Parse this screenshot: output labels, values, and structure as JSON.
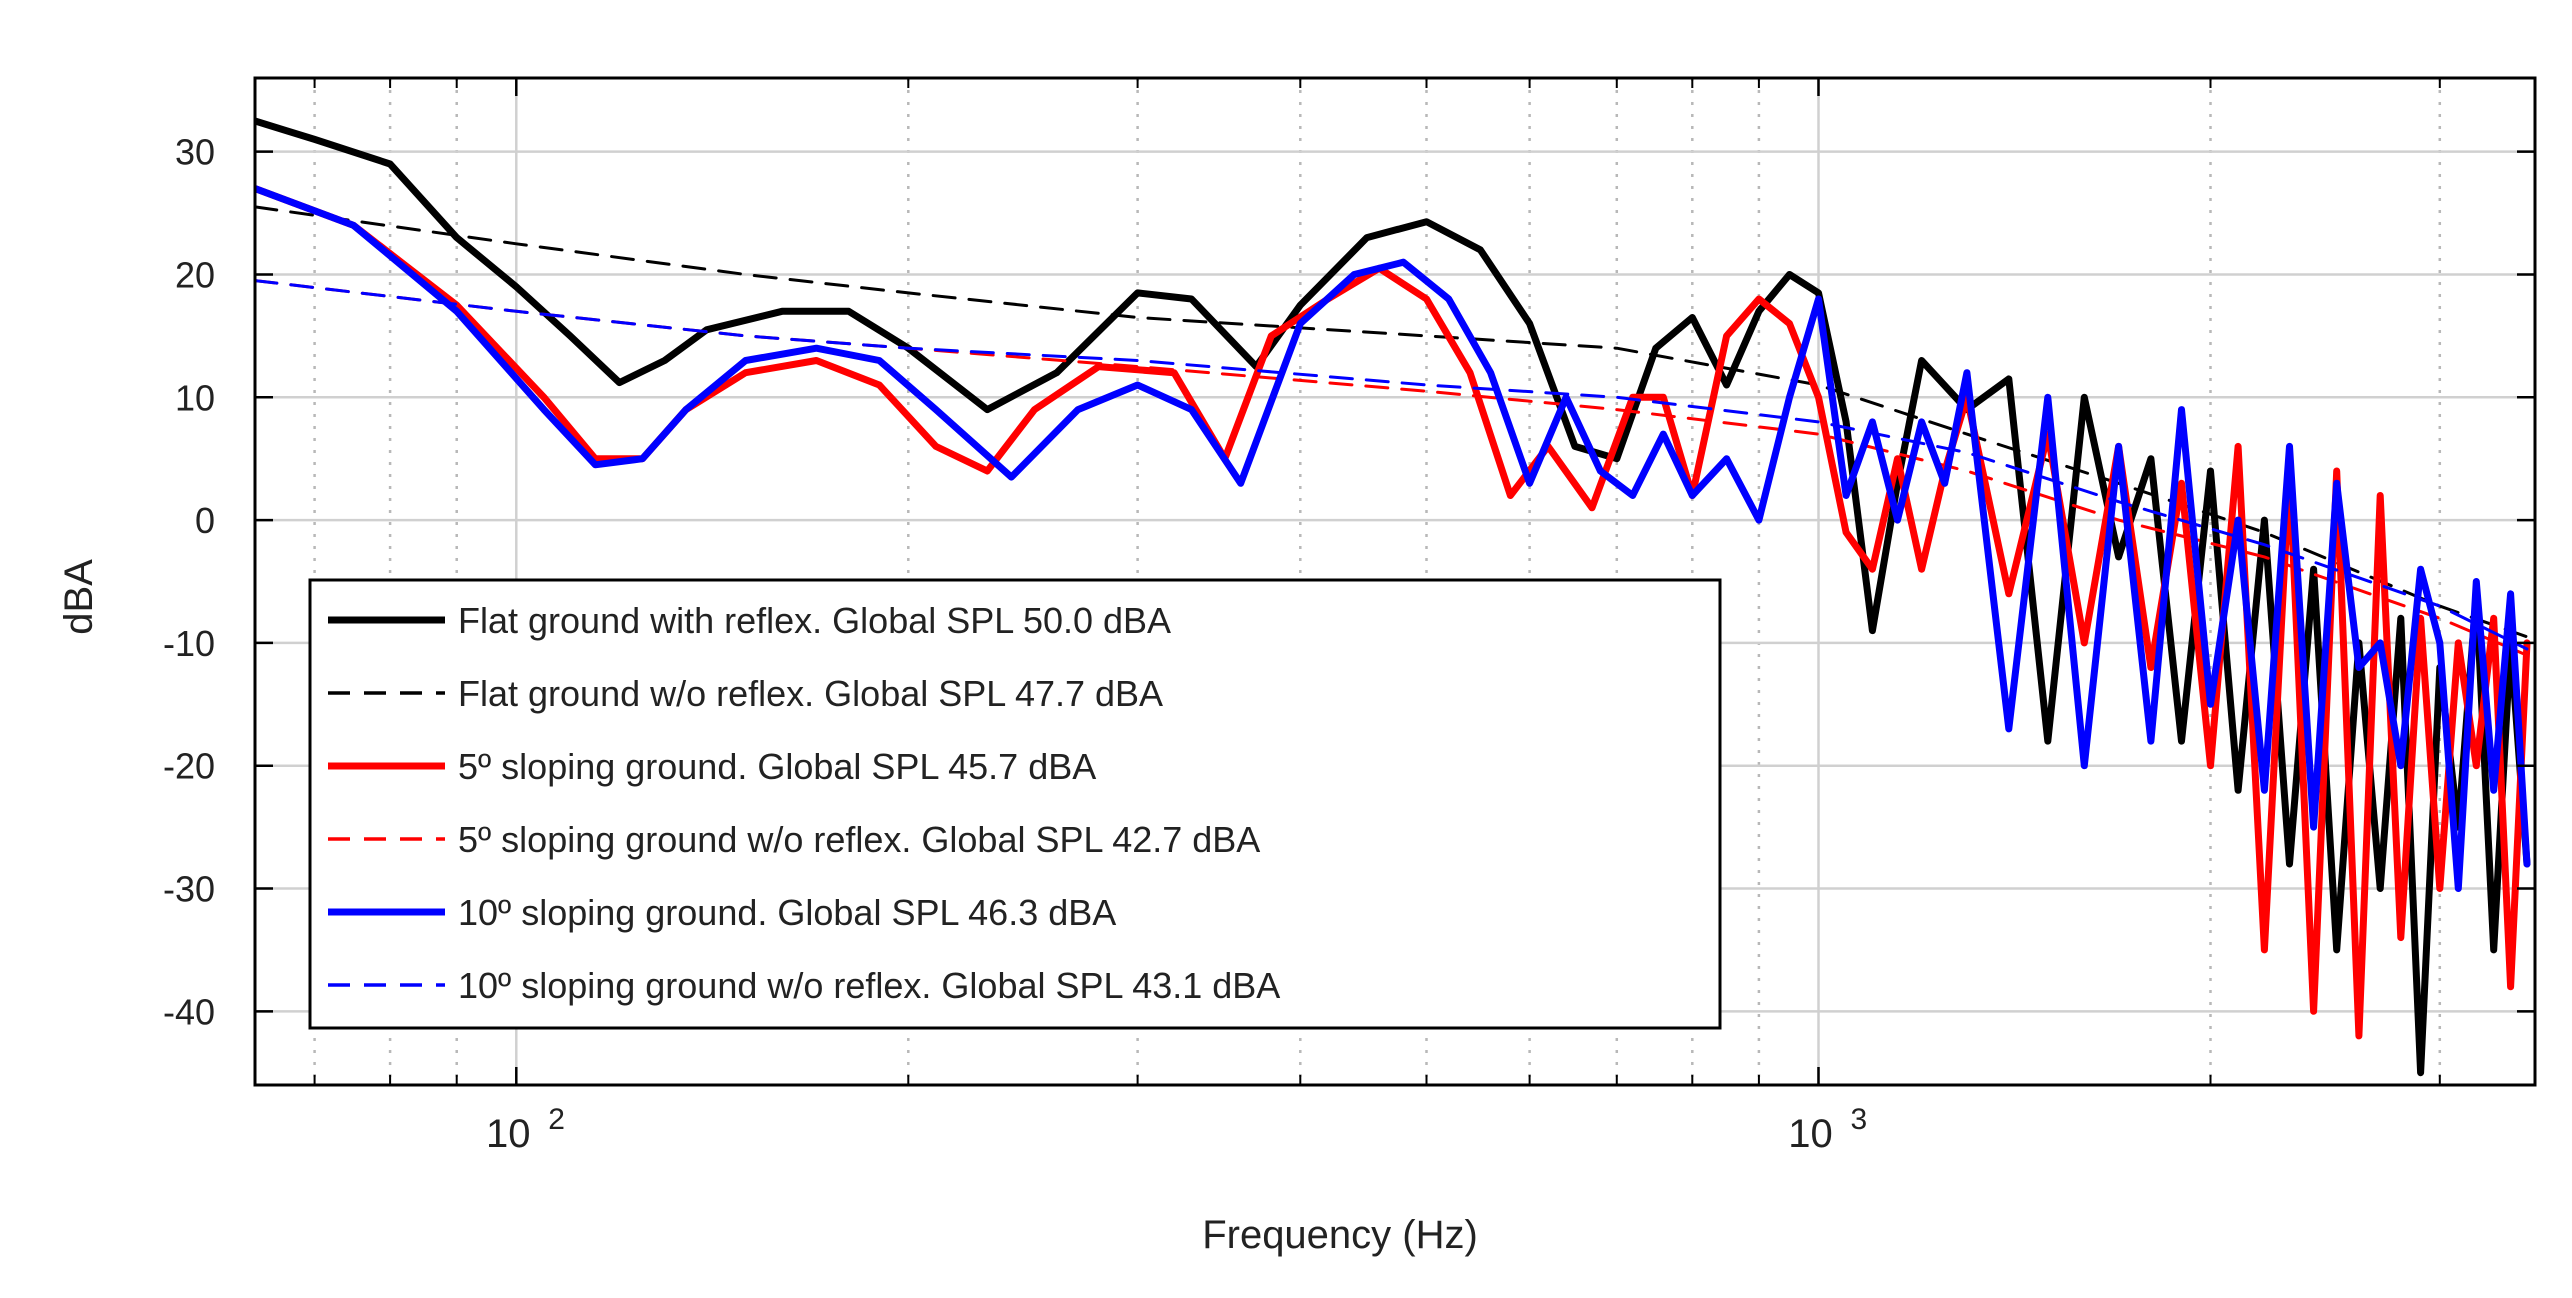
{
  "chart_data": {
    "type": "line",
    "title": "",
    "xlabel": "Frequency (Hz)",
    "ylabel": "dBA",
    "xscale": "log",
    "xlim": [
      63,
      3550
    ],
    "ylim": [
      -46,
      36
    ],
    "yticks": [
      30,
      20,
      10,
      0,
      -10,
      -20,
      -30,
      -40
    ],
    "ytick_labels": [
      "30",
      "20",
      "10",
      "0",
      "-10",
      "-20",
      "-30",
      "-40"
    ],
    "xticks": [
      100,
      1000
    ],
    "xtick_labels": [
      {
        "base": "10",
        "exp": "2"
      },
      {
        "base": "10",
        "exp": "3"
      }
    ],
    "grid": true,
    "legend_position": "bottom-left",
    "series": [
      {
        "name": "Flat ground with reflex. Global SPL 50.0 dBA",
        "color": "#000000",
        "style": "solid",
        "x": [
          63,
          70,
          80,
          90,
          100,
          110,
          120,
          130,
          140,
          160,
          180,
          200,
          230,
          260,
          300,
          330,
          370,
          400,
          450,
          500,
          550,
          600,
          650,
          700,
          750,
          800,
          850,
          900,
          950,
          1000,
          1050,
          1100,
          1150,
          1200,
          1300,
          1400,
          1500,
          1600,
          1700,
          1800,
          1900,
          2000,
          2100,
          2200,
          2300,
          2400,
          2500,
          2600,
          2700,
          2800,
          2900,
          3000,
          3100,
          3200,
          3300,
          3400,
          3500
        ],
        "values": [
          32.5,
          31,
          29,
          23,
          19,
          15,
          11.2,
          13,
          15.5,
          17,
          17,
          14,
          9,
          12,
          18.5,
          18,
          12.5,
          17.5,
          23,
          24.3,
          22,
          16,
          6,
          5,
          14,
          16.5,
          11,
          17,
          20,
          18.5,
          8,
          -9,
          3,
          13,
          9,
          11.5,
          -18,
          10,
          -3,
          5,
          -18,
          4,
          -22,
          0,
          -28,
          -4,
          -35,
          -10,
          -30,
          -8,
          -45,
          -12,
          -25,
          -6,
          -35,
          -10,
          -28
        ]
      },
      {
        "name": "Flat ground w/o reflex. Global SPL 47.7 dBA",
        "color": "#000000",
        "style": "dashed",
        "x": [
          63,
          100,
          150,
          200,
          300,
          500,
          700,
          1000,
          1300,
          1700,
          2200,
          3000,
          3500
        ],
        "values": [
          25.5,
          22.5,
          20,
          18.5,
          16.5,
          15,
          14,
          11,
          7,
          3,
          -1,
          -7,
          -9.5
        ]
      },
      {
        "name": "5º sloping ground. Global SPL 45.7 dBA",
        "color": "#ff0000",
        "style": "solid",
        "x": [
          63,
          75,
          90,
          105,
          115,
          125,
          135,
          150,
          170,
          190,
          210,
          230,
          250,
          280,
          320,
          350,
          380,
          420,
          460,
          500,
          540,
          580,
          620,
          670,
          720,
          760,
          800,
          850,
          900,
          950,
          1000,
          1050,
          1100,
          1150,
          1200,
          1250,
          1300,
          1400,
          1500,
          1600,
          1700,
          1800,
          1900,
          2000,
          2100,
          2200,
          2300,
          2400,
          2500,
          2600,
          2700,
          2800,
          2900,
          3000,
          3100,
          3200,
          3300,
          3400,
          3500
        ],
        "values": [
          27,
          24,
          17.5,
          10,
          5,
          5,
          9,
          12,
          13,
          11,
          6,
          4,
          9,
          12.5,
          12,
          5,
          15,
          18,
          20.5,
          18,
          12,
          2,
          6,
          1,
          10,
          10,
          2,
          15,
          18,
          16,
          10,
          -1,
          -4,
          5,
          -4,
          4,
          10,
          -6,
          7,
          -10,
          6,
          -12,
          3,
          -20,
          6,
          -35,
          4,
          -40,
          4,
          -42,
          2,
          -34,
          -8,
          -30,
          -10,
          -20,
          -8,
          -38,
          -10
        ]
      },
      {
        "name": "5º sloping ground w/o reflex. Global SPL 42.7 dBA",
        "color": "#ff0000",
        "style": "dashed",
        "x": [
          63,
          100,
          150,
          200,
          300,
          500,
          700,
          1000,
          1300,
          1700,
          2200,
          3000,
          3500
        ],
        "values": [
          19.5,
          17,
          15,
          14,
          12.5,
          10.5,
          9,
          7,
          4,
          0,
          -3,
          -8,
          -11
        ]
      },
      {
        "name": "10º sloping ground. Global SPL 46.3 dBA",
        "color": "#0000ff",
        "style": "solid",
        "x": [
          63,
          75,
          90,
          105,
          115,
          125,
          135,
          150,
          170,
          190,
          210,
          240,
          270,
          300,
          330,
          360,
          400,
          440,
          480,
          520,
          560,
          600,
          640,
          680,
          720,
          760,
          800,
          850,
          900,
          950,
          1000,
          1050,
          1100,
          1150,
          1200,
          1250,
          1300,
          1400,
          1500,
          1600,
          1700,
          1800,
          1900,
          2000,
          2100,
          2200,
          2300,
          2400,
          2500,
          2600,
          2700,
          2800,
          2900,
          3000,
          3100,
          3200,
          3300,
          3400,
          3500
        ],
        "values": [
          27,
          24,
          17,
          9,
          4.5,
          5,
          9,
          13,
          14,
          13,
          9,
          3.5,
          9,
          11,
          9,
          3,
          16,
          20,
          21,
          18,
          12,
          3,
          10,
          4,
          2,
          7,
          2,
          5,
          0,
          10,
          18,
          2,
          8,
          0,
          8,
          3,
          12,
          -17,
          10,
          -20,
          6,
          -18,
          9,
          -15,
          0,
          -22,
          6,
          -25,
          3,
          -12,
          -10,
          -20,
          -4,
          -10,
          -30,
          -5,
          -22,
          -6,
          -28
        ]
      },
      {
        "name": "10º sloping ground w/o reflex. Global SPL 43.1 dBA",
        "color": "#0000ff",
        "style": "dashed",
        "x": [
          63,
          100,
          150,
          200,
          300,
          500,
          700,
          1000,
          1300,
          1700,
          2200,
          3000,
          3500
        ],
        "values": [
          19.5,
          17,
          15,
          14,
          13,
          11,
          10,
          8,
          5.5,
          1.5,
          -2,
          -7,
          -10.5
        ]
      }
    ]
  }
}
